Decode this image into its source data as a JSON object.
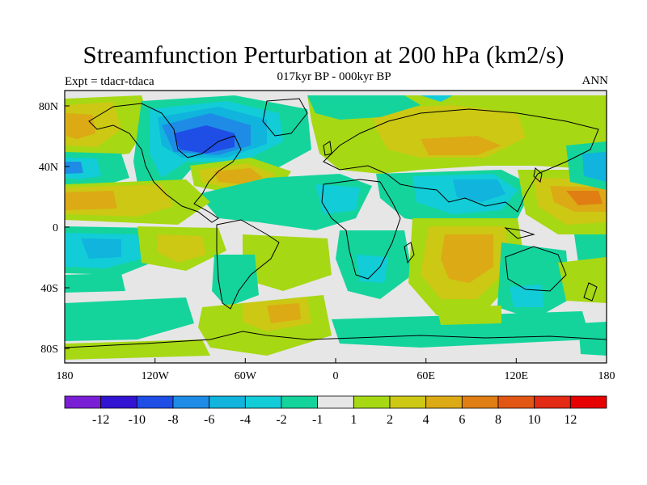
{
  "figure": {
    "title": "Streamfunction Perturbation at 200 hPa (km2/s)",
    "subtitle": "017kyr BP - 000kyr BP",
    "left_label": "Expt = tdacr-tdaca",
    "right_label": "ANN"
  },
  "axes": {
    "x_ticks": [
      "180",
      "120W",
      "60W",
      "0",
      "60E",
      "120E",
      "180"
    ],
    "y_ticks": [
      "80N",
      "40N",
      "0",
      "40S",
      "80S"
    ]
  },
  "colorbar": {
    "labels": [
      "-12",
      "-10",
      "-8",
      "-6",
      "-4",
      "-2",
      "-1",
      "1",
      "2",
      "4",
      "6",
      "8",
      "10",
      "12"
    ],
    "colors": [
      "#7a1ed6",
      "#3214d2",
      "#1e4ee6",
      "#1e8ce6",
      "#10b4dc",
      "#12ccd8",
      "#14d49c",
      "#e6e6e6",
      "#a6d814",
      "#ccc814",
      "#dcaa14",
      "#e07e14",
      "#e25614",
      "#e22a14",
      "#e60000"
    ]
  },
  "chart_data": {
    "type": "heatmap",
    "title": "Streamfunction Perturbation at 200 hPa (km2/s)",
    "subtitle": "017kyr BP - 000kyr BP",
    "experiment": "Expt = tdacr-tdaca",
    "season": "ANN",
    "x_range": [
      -180,
      180
    ],
    "y_range": [
      -90,
      90
    ],
    "contour_levels": [
      -12,
      -10,
      -8,
      -6,
      -4,
      -2,
      -1,
      1,
      2,
      4,
      6,
      8,
      10,
      12
    ],
    "features": [
      {
        "region": "Hudson Bay / northeastern North America",
        "sign": "negative",
        "approx_min": -8
      },
      {
        "region": "North Atlantic / eastern US",
        "sign": "positive",
        "approx_max": 4
      },
      {
        "region": "Central Asia",
        "sign": "positive",
        "approx_max": 4
      },
      {
        "region": "Western North Pacific",
        "sign": "positive",
        "approx_max": 6
      },
      {
        "region": "Southern Indian Ocean",
        "sign": "positive",
        "approx_max": 6
      },
      {
        "region": "Tibet / South Asia",
        "sign": "negative",
        "approx_min": -4
      },
      {
        "region": "Tropical South Pacific",
        "sign": "negative",
        "approx_min": -4
      },
      {
        "region": "South Atlantic",
        "sign": "positive",
        "approx_max": 4
      }
    ]
  }
}
